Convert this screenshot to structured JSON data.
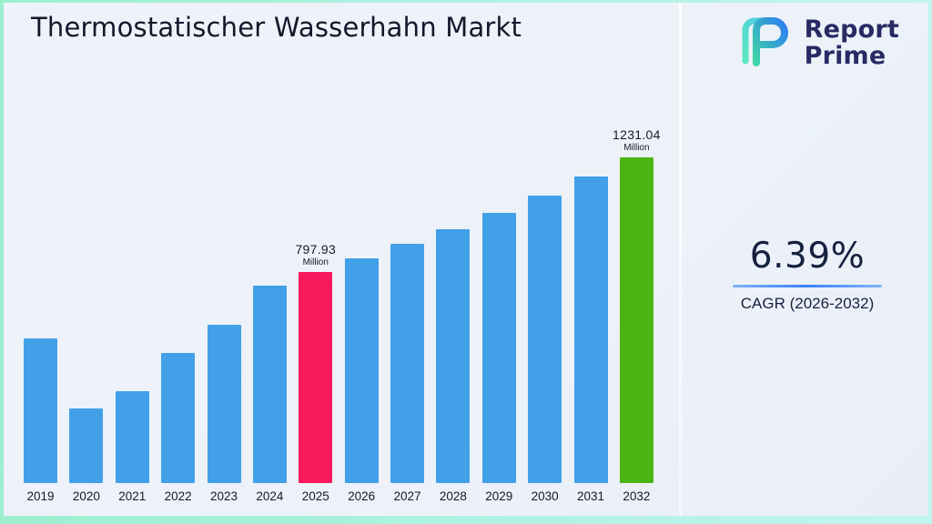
{
  "title": "Thermostatischer Wasserhahn Markt",
  "logo": {
    "line1": "Report",
    "line2": "Prime"
  },
  "cagr": {
    "value": "6.39%",
    "label": "CAGR (2026-2032)"
  },
  "chart_data": {
    "type": "bar",
    "title": "Thermostatischer Wasserhahn Markt",
    "unit": "Million",
    "categories": [
      "2019",
      "2020",
      "2021",
      "2022",
      "2023",
      "2024",
      "2025",
      "2026",
      "2027",
      "2028",
      "2029",
      "2030",
      "2031",
      "2032"
    ],
    "values": [
      547,
      282,
      349,
      491,
      599,
      746,
      797.93,
      848.93,
      903.18,
      960.89,
      1022.29,
      1087.62,
      1157.13,
      1231.04
    ],
    "ylim": [
      0,
      1250
    ],
    "grid": false,
    "legend": false,
    "bar_color_default": "#41a0e8",
    "highlights": [
      {
        "index": 6,
        "color": "#f8195d",
        "label": "797.93",
        "sublabel": "Million"
      },
      {
        "index": 13,
        "color": "#4cb513",
        "label": "1231.04",
        "sublabel": "Million"
      }
    ]
  }
}
